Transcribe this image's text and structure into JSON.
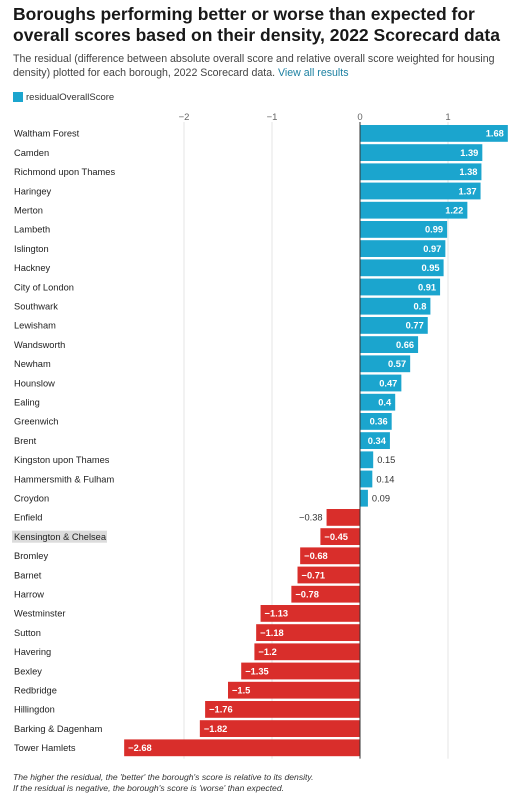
{
  "title": "Boroughs performing better or worse than expected for overall scores based on their density, 2022 Scorecard data",
  "description": "The residual (difference between absolute overall score and relative overall score weighted for housing density) plotted for each borough, 2022 Scorecard data.",
  "link_text": "View all results",
  "notes": [
    "The higher the residual, the 'better' the borough's score is relative to its density.",
    "If the residual is negative, the borough's score is 'worse' than expected."
  ],
  "colors": {
    "positive": "#1ba5ce",
    "negative": "#d92e2b",
    "highlight_bg": "#dcdcdc"
  },
  "chart_data": {
    "type": "bar",
    "orientation": "horizontal",
    "legend": [
      "residualOverallScore"
    ],
    "legend_position": "top-left",
    "xlim": [
      -2.5,
      1.7
    ],
    "xticks": [
      -2,
      -1,
      0,
      1
    ],
    "xtick_labels": [
      "−2",
      "−1",
      "0",
      "1"
    ],
    "grid": true,
    "highlighted_category": "Kensington & Chelsea",
    "categories": [
      "Waltham Forest",
      "Camden",
      "Richmond upon Thames",
      "Haringey",
      "Merton",
      "Lambeth",
      "Islington",
      "Hackney",
      "City of London",
      "Southwark",
      "Lewisham",
      "Wandsworth",
      "Newham",
      "Hounslow",
      "Ealing",
      "Greenwich",
      "Brent",
      "Kingston upon Thames",
      "Hammersmith & Fulham",
      "Croydon",
      "Enfield",
      "Kensington & Chelsea",
      "Bromley",
      "Barnet",
      "Harrow",
      "Westminster",
      "Sutton",
      "Havering",
      "Bexley",
      "Redbridge",
      "Hillingdon",
      "Barking & Dagenham",
      "Tower Hamlets"
    ],
    "values": [
      1.68,
      1.39,
      1.38,
      1.37,
      1.22,
      0.99,
      0.97,
      0.95,
      0.91,
      0.8,
      0.77,
      0.66,
      0.57,
      0.47,
      0.4,
      0.36,
      0.34,
      0.15,
      0.14,
      0.09,
      -0.38,
      -0.45,
      -0.68,
      -0.71,
      -0.78,
      -1.13,
      -1.18,
      -1.2,
      -1.35,
      -1.5,
      -1.76,
      -1.82,
      -2.68
    ],
    "value_labels": [
      "1.68",
      "1.39",
      "1.38",
      "1.37",
      "1.22",
      "0.99",
      "0.97",
      "0.95",
      "0.91",
      "0.8",
      "0.77",
      "0.66",
      "0.57",
      "0.47",
      "0.4",
      "0.36",
      "0.34",
      "0.15",
      "0.14",
      "0.09",
      "−0.38",
      "−0.45",
      "−0.68",
      "−0.71",
      "−0.78",
      "−1.13",
      "−1.18",
      "−1.2",
      "−1.35",
      "−1.5",
      "−1.76",
      "−1.82",
      "−2.68"
    ]
  }
}
